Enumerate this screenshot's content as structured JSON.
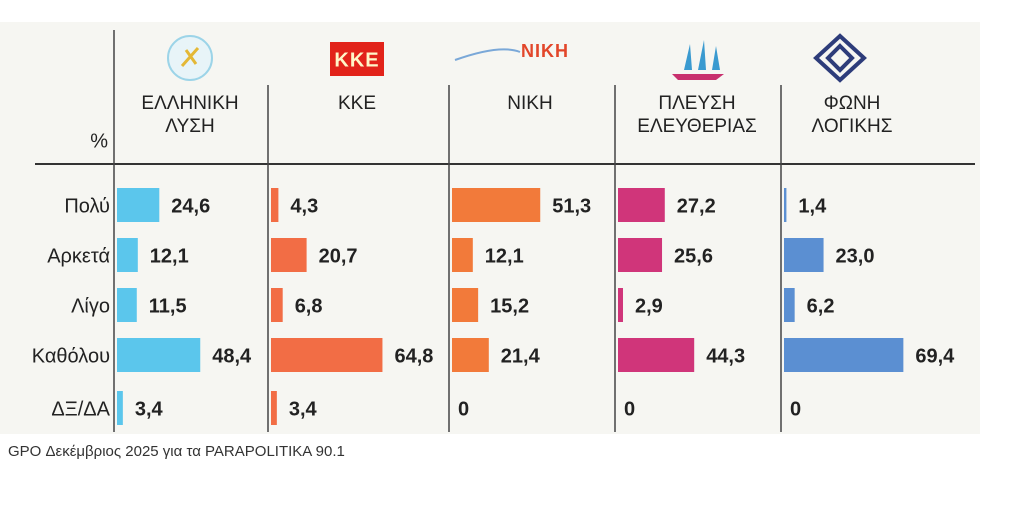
{
  "chart_data": {
    "type": "bar",
    "unit_label": "%",
    "categories": [
      "Πολύ",
      "Αρκετά",
      "Λίγο",
      "Καθόλου",
      "ΔΞ/ΔΑ"
    ],
    "series": [
      {
        "name": "ΕΛΛΗΝΙΚΗ ΛΥΣΗ",
        "color": "#5bc6ec",
        "values": [
          24.6,
          12.1,
          11.5,
          48.4,
          3.4
        ],
        "value_labels": [
          "24,6",
          "12,1",
          "11,5",
          "48,4",
          "3,4"
        ]
      },
      {
        "name": "ΚΚΕ",
        "logo": "ΚΚΕ",
        "color": "#f26d45",
        "values": [
          4.3,
          20.7,
          6.8,
          64.8,
          3.4
        ],
        "value_labels": [
          "4,3",
          "20,7",
          "6,8",
          "64,8",
          "3,4"
        ]
      },
      {
        "name": "ΝΙΚΗ",
        "logo": "ΝΙΚΗ",
        "color": "#f27a3a",
        "values": [
          51.3,
          12.1,
          15.2,
          21.4,
          0
        ],
        "value_labels": [
          "51,3",
          "12,1",
          "15,2",
          "21,4",
          "0"
        ]
      },
      {
        "name": "ΠΛΕΥΣΗ ΕΛΕΥΘΕΡΙΑΣ",
        "color": "#d0357a",
        "values": [
          27.2,
          25.6,
          2.9,
          44.3,
          0
        ],
        "value_labels": [
          "27,2",
          "25,6",
          "2,9",
          "44,3",
          "0"
        ]
      },
      {
        "name": "ΦΩΝΗ ΛΟΓΙΚΗΣ",
        "color": "#5b8fd2",
        "values": [
          1.4,
          23.0,
          6.2,
          69.4,
          0
        ],
        "value_labels": [
          "1,4",
          "23,0",
          "6,2",
          "69,4",
          "0"
        ]
      }
    ],
    "source": "GPO Δεκέμβριος 2025 για τα PARAPOLITIKA 90.1"
  }
}
